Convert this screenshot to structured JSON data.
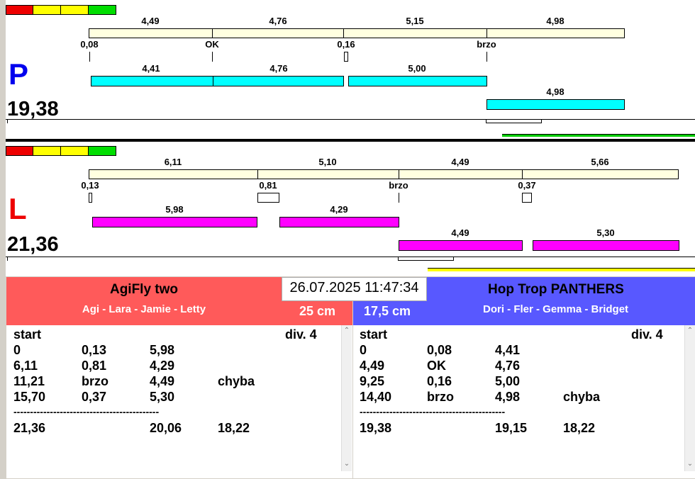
{
  "colors": {
    "red": "#ee0000",
    "yellow": "#ffff00",
    "green": "#00dd00",
    "course": "#ffffe0",
    "cyan": "#00ffff",
    "magenta": "#ff00ff",
    "left_header": "#ff5a5a",
    "right_header": "#5858ff",
    "lane_p_letter": "#0000ee",
    "lane_l_letter": "#ee0000",
    "progress_p": "#00cc00",
    "progress_l": "#ffff00"
  },
  "lane_p": {
    "letter": "P",
    "total": "19,38",
    "course_labels": [
      "4,49",
      "4,76",
      "5,15",
      "4,98"
    ],
    "reaction_labels": [
      "0,08",
      "OK",
      "0,16",
      "brzo"
    ],
    "run_labels": [
      "4,41",
      "4,76",
      "5,00"
    ],
    "rerun_label": "4,98"
  },
  "lane_l": {
    "letter": "L",
    "total": "21,36",
    "course_labels": [
      "6,11",
      "5,10",
      "4,49",
      "5,66"
    ],
    "reaction_labels": [
      "0,13",
      "0,81",
      "brzo",
      "0,37"
    ],
    "run_labels": [
      "5,98",
      "4,29"
    ],
    "rerun_labels": [
      "4,49",
      "5,30"
    ]
  },
  "datetime": "26.07.2025 11:47:34",
  "left_team": {
    "name": "AgiFly two",
    "members": "Agi - Lara - Jamie - Letty",
    "height": "25 cm",
    "start_label": "start",
    "division": "div.  4",
    "rows": [
      [
        "0",
        "0,13",
        "5,98",
        ""
      ],
      [
        "6,11",
        "0,81",
        "4,29",
        ""
      ],
      [
        "11,21",
        "brzo",
        "4,49",
        "chyba"
      ],
      [
        "15,70",
        "0,37",
        "5,30",
        ""
      ]
    ],
    "divider": "--------------------------------------------",
    "totals": [
      "21,36",
      "",
      "20,06",
      "18,22"
    ]
  },
  "right_team": {
    "name": "Hop Trop PANTHERS",
    "members": "Dori - Fler - Gemma - Bridget",
    "height": "17,5 cm",
    "start_label": "start",
    "division": "div.  4",
    "rows": [
      [
        "0",
        "0,08",
        "4,41",
        ""
      ],
      [
        "4,49",
        "OK",
        "4,76",
        ""
      ],
      [
        "9,25",
        "0,16",
        "5,00",
        ""
      ],
      [
        "14,40",
        "brzo",
        "4,98",
        "chyba"
      ]
    ],
    "divider": "--------------------------------------------",
    "totals": [
      "19,38",
      "",
      "19,15",
      "18,22"
    ]
  },
  "scroll_up_icon": "scroll-up-arrow",
  "scroll_down_icon": "scroll-down-arrow"
}
